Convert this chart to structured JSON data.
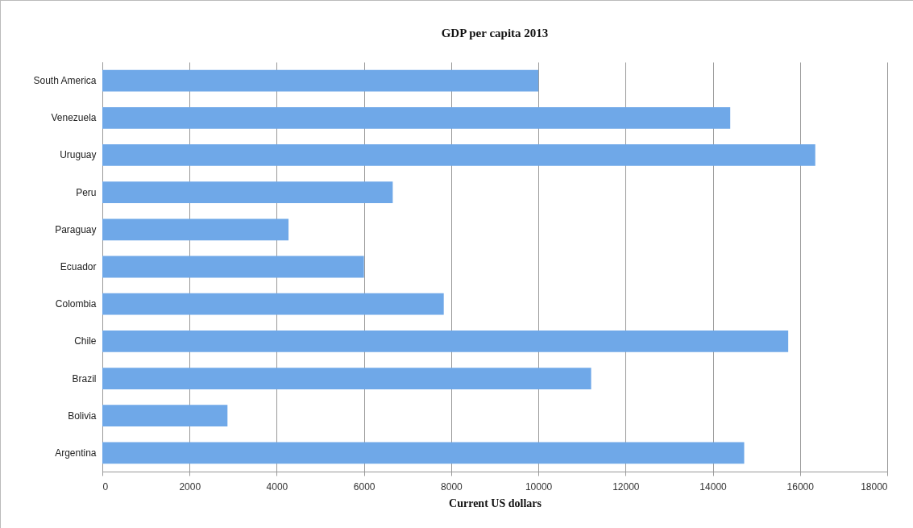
{
  "chart_data": {
    "type": "bar",
    "orientation": "horizontal",
    "title": "GDP per capita 2013",
    "xlabel": "Current US dollars",
    "categories": [
      "South America",
      "Venezuela",
      "Uruguay",
      "Peru",
      "Paraguay",
      "Ecuador",
      "Colombia",
      "Chile",
      "Brazil",
      "Bolivia",
      "Argentina"
    ],
    "values": [
      10000,
      14400,
      16350,
      6660,
      4270,
      6000,
      7830,
      15730,
      11210,
      2870,
      14720
    ],
    "color": "#6fa8e8",
    "xlim": [
      0,
      18000
    ],
    "xticks": [
      0,
      2000,
      4000,
      6000,
      8000,
      10000,
      12000,
      14000,
      16000,
      18000
    ],
    "grid": "x"
  }
}
